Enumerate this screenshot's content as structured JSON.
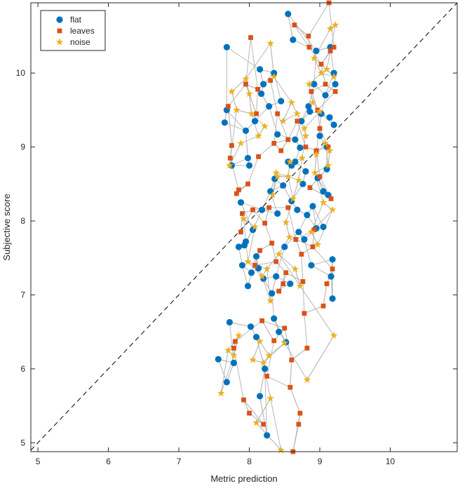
{
  "chart_data": {
    "type": "scatter",
    "xlabel": "Metric prediction",
    "ylabel": "Subjective score",
    "xlim": [
      4.9,
      10.95
    ],
    "ylim": [
      4.88,
      10.95
    ],
    "xticks": [
      5,
      6,
      7,
      8,
      9,
      10
    ],
    "yticks": [
      5,
      6,
      7,
      8,
      9,
      10
    ],
    "grid": false,
    "legend_position": "top-left",
    "reference_line": {
      "type": "identity",
      "style": "dashed",
      "color": "#000000"
    },
    "connector_color": "#b8b8b8",
    "series": [
      {
        "name": "flat",
        "marker": "circle",
        "color": "#0072BD",
        "points": [
          [
            7.56,
            6.13
          ],
          [
            7.68,
            10.35
          ],
          [
            7.72,
            6.63
          ],
          [
            7.65,
            9.33
          ],
          [
            7.68,
            9.5
          ],
          [
            7.75,
            8.75
          ],
          [
            7.78,
            6.08
          ],
          [
            7.68,
            5.82
          ],
          [
            7.88,
            8.25
          ],
          [
            7.85,
            7.65
          ],
          [
            7.9,
            7.4
          ],
          [
            7.95,
            9.22
          ],
          [
            7.98,
            8.85
          ],
          [
            8.0,
            8.75
          ],
          [
            8.02,
            6.57
          ],
          [
            7.93,
            7.67
          ],
          [
            7.98,
            7.12
          ],
          [
            8.03,
            7.3
          ],
          [
            8.05,
            7.88
          ],
          [
            8.08,
            9.35
          ],
          [
            8.1,
            7.52
          ],
          [
            8.13,
            7.36
          ],
          [
            8.15,
            10.05
          ],
          [
            8.17,
            9.72
          ],
          [
            8.18,
            8.15
          ],
          [
            8.2,
            7.22
          ],
          [
            8.22,
            6.0
          ],
          [
            8.25,
            5.1
          ],
          [
            8.28,
            9.55
          ],
          [
            8.3,
            8.4
          ],
          [
            8.32,
            7.02
          ],
          [
            8.35,
            6.68
          ],
          [
            8.36,
            8.57
          ],
          [
            8.38,
            7.25
          ],
          [
            8.4,
            8.1
          ],
          [
            8.42,
            6.5
          ],
          [
            8.45,
            9.62
          ],
          [
            8.48,
            8.48
          ],
          [
            8.5,
            7.65
          ],
          [
            8.52,
            6.36
          ],
          [
            8.55,
            10.8
          ],
          [
            8.55,
            8.8
          ],
          [
            8.58,
            7.15
          ],
          [
            8.6,
            8.27
          ],
          [
            8.62,
            10.45
          ],
          [
            8.65,
            9.1
          ],
          [
            8.68,
            8.15
          ],
          [
            8.7,
            7.85
          ],
          [
            8.72,
            8.99
          ],
          [
            8.74,
            9.35
          ],
          [
            8.76,
            8.5
          ],
          [
            8.78,
            7.75
          ],
          [
            8.8,
            8.67
          ],
          [
            8.82,
            8.08
          ],
          [
            8.84,
            9.55
          ],
          [
            8.86,
            9.48
          ],
          [
            8.88,
            7.4
          ],
          [
            8.9,
            8.2
          ],
          [
            8.92,
            9.85
          ],
          [
            8.95,
            10.3
          ],
          [
            8.97,
            8.58
          ],
          [
            9.0,
            9.15
          ],
          [
            9.02,
            9.45
          ],
          [
            9.05,
            7.92
          ],
          [
            9.08,
            9.7
          ],
          [
            9.1,
            9.0
          ],
          [
            9.1,
            8.7
          ],
          [
            9.12,
            8.35
          ],
          [
            9.14,
            9.4
          ],
          [
            9.15,
            10.35
          ],
          [
            9.16,
            7.25
          ],
          [
            9.18,
            7.48
          ],
          [
            9.18,
            6.95
          ],
          [
            9.2,
            10.0
          ],
          [
            9.2,
            9.3
          ],
          [
            9.22,
            9.85
          ],
          [
            9.05,
            8.4
          ],
          [
            8.95,
            7.9
          ],
          [
            8.35,
            10.0
          ],
          [
            8.2,
            9.85
          ],
          [
            8.6,
            8.75
          ],
          [
            7.95,
            7.72
          ],
          [
            8.1,
            6.43
          ],
          [
            8.4,
            9.17
          ],
          [
            8.65,
            8.8
          ],
          [
            8.15,
            5.63
          ]
        ]
      },
      {
        "name": "leaves",
        "marker": "square",
        "color": "#D95319",
        "points": [
          [
            7.7,
            9.55
          ],
          [
            7.73,
            8.85
          ],
          [
            7.75,
            9.02
          ],
          [
            7.78,
            6.28
          ],
          [
            7.8,
            6.37
          ],
          [
            7.82,
            8.37
          ],
          [
            7.85,
            8.42
          ],
          [
            7.88,
            7.85
          ],
          [
            7.9,
            8.1
          ],
          [
            7.92,
            5.58
          ],
          [
            7.95,
            9.85
          ],
          [
            7.98,
            8.5
          ],
          [
            8.0,
            5.4
          ],
          [
            8.02,
            10.48
          ],
          [
            8.05,
            8.15
          ],
          [
            8.08,
            7.4
          ],
          [
            8.1,
            9.45
          ],
          [
            8.13,
            8.87
          ],
          [
            8.15,
            7.6
          ],
          [
            8.18,
            6.65
          ],
          [
            8.2,
            5.25
          ],
          [
            8.22,
            7.97
          ],
          [
            8.25,
            5.9
          ],
          [
            8.28,
            8.18
          ],
          [
            8.3,
            9.9
          ],
          [
            8.32,
            7.7
          ],
          [
            8.35,
            6.38
          ],
          [
            8.38,
            7.45
          ],
          [
            8.4,
            9.45
          ],
          [
            8.42,
            7.05
          ],
          [
            8.45,
            8.95
          ],
          [
            8.48,
            7.15
          ],
          [
            8.5,
            6.55
          ],
          [
            8.52,
            7.3
          ],
          [
            8.55,
            8.18
          ],
          [
            8.58,
            5.75
          ],
          [
            8.6,
            6.12
          ],
          [
            8.62,
            4.88
          ],
          [
            8.64,
            10.65
          ],
          [
            8.66,
            7.75
          ],
          [
            8.68,
            9.35
          ],
          [
            8.7,
            5.25
          ],
          [
            8.72,
            5.4
          ],
          [
            8.74,
            7.55
          ],
          [
            8.76,
            7.18
          ],
          [
            8.78,
            6.75
          ],
          [
            8.8,
            9.0
          ],
          [
            8.82,
            6.28
          ],
          [
            8.84,
            10.5
          ],
          [
            8.86,
            8.45
          ],
          [
            8.88,
            9.75
          ],
          [
            8.9,
            7.65
          ],
          [
            8.92,
            7.88
          ],
          [
            8.95,
            8.95
          ],
          [
            8.97,
            9.5
          ],
          [
            9.0,
            8.6
          ],
          [
            9.02,
            10.12
          ],
          [
            9.05,
            6.85
          ],
          [
            9.08,
            9.85
          ],
          [
            9.1,
            7.15
          ],
          [
            9.12,
            9.0
          ],
          [
            9.15,
            10.3
          ],
          [
            9.16,
            8.3
          ],
          [
            9.18,
            7.35
          ],
          [
            9.2,
            10.35
          ],
          [
            9.22,
            9.75
          ],
          [
            9.13,
            10.95
          ],
          [
            9.0,
            9.25
          ],
          [
            8.85,
            10.35
          ],
          [
            8.55,
            9.1
          ],
          [
            8.35,
            9.05
          ],
          [
            8.12,
            9.78
          ]
        ]
      },
      {
        "name": "noise",
        "marker": "star",
        "color": "#EDB120",
        "points": [
          [
            7.6,
            5.67
          ],
          [
            7.7,
            6.25
          ],
          [
            7.72,
            8.75
          ],
          [
            7.75,
            9.75
          ],
          [
            7.78,
            6.18
          ],
          [
            7.82,
            9.5
          ],
          [
            7.85,
            6.45
          ],
          [
            7.88,
            9.05
          ],
          [
            7.92,
            8.03
          ],
          [
            7.95,
            9.92
          ],
          [
            7.98,
            7.45
          ],
          [
            8.0,
            9.72
          ],
          [
            8.03,
            9.45
          ],
          [
            8.05,
            6.12
          ],
          [
            8.08,
            7.92
          ],
          [
            8.1,
            5.27
          ],
          [
            8.13,
            9.15
          ],
          [
            8.15,
            6.37
          ],
          [
            8.18,
            7.25
          ],
          [
            8.2,
            6.08
          ],
          [
            8.22,
            9.28
          ],
          [
            8.25,
            7.35
          ],
          [
            8.28,
            6.18
          ],
          [
            8.3,
            5.6
          ],
          [
            8.3,
            6.92
          ],
          [
            8.33,
            8.35
          ],
          [
            8.35,
            9.95
          ],
          [
            8.38,
            8.65
          ],
          [
            8.4,
            8.6
          ],
          [
            8.42,
            7.55
          ],
          [
            8.45,
            4.9
          ],
          [
            8.48,
            9.35
          ],
          [
            8.5,
            6.35
          ],
          [
            8.52,
            7.98
          ],
          [
            8.55,
            8.6
          ],
          [
            8.58,
            8.8
          ],
          [
            8.6,
            9.6
          ],
          [
            8.62,
            8.3
          ],
          [
            8.65,
            7.35
          ],
          [
            8.68,
            9.45
          ],
          [
            8.7,
            8.55
          ],
          [
            8.72,
            7.12
          ],
          [
            8.75,
            8.85
          ],
          [
            8.78,
            9.25
          ],
          [
            8.8,
            9.15
          ],
          [
            8.82,
            5.85
          ],
          [
            8.85,
            9.85
          ],
          [
            8.88,
            7.85
          ],
          [
            8.9,
            9.6
          ],
          [
            8.92,
            10.2
          ],
          [
            8.95,
            8.9
          ],
          [
            8.97,
            7.68
          ],
          [
            9.0,
            9.48
          ],
          [
            9.02,
            10.0
          ],
          [
            9.05,
            8.25
          ],
          [
            9.08,
            9.05
          ],
          [
            9.1,
            10.05
          ],
          [
            9.12,
            8.75
          ],
          [
            9.15,
            10.6
          ],
          [
            9.18,
            8.15
          ],
          [
            9.2,
            6.45
          ],
          [
            9.2,
            9.95
          ],
          [
            9.22,
            10.65
          ],
          [
            9.14,
            8.95
          ],
          [
            8.3,
            10.4
          ],
          [
            8.57,
            7.78
          ],
          [
            8.93,
            8.65
          ]
        ]
      }
    ]
  }
}
